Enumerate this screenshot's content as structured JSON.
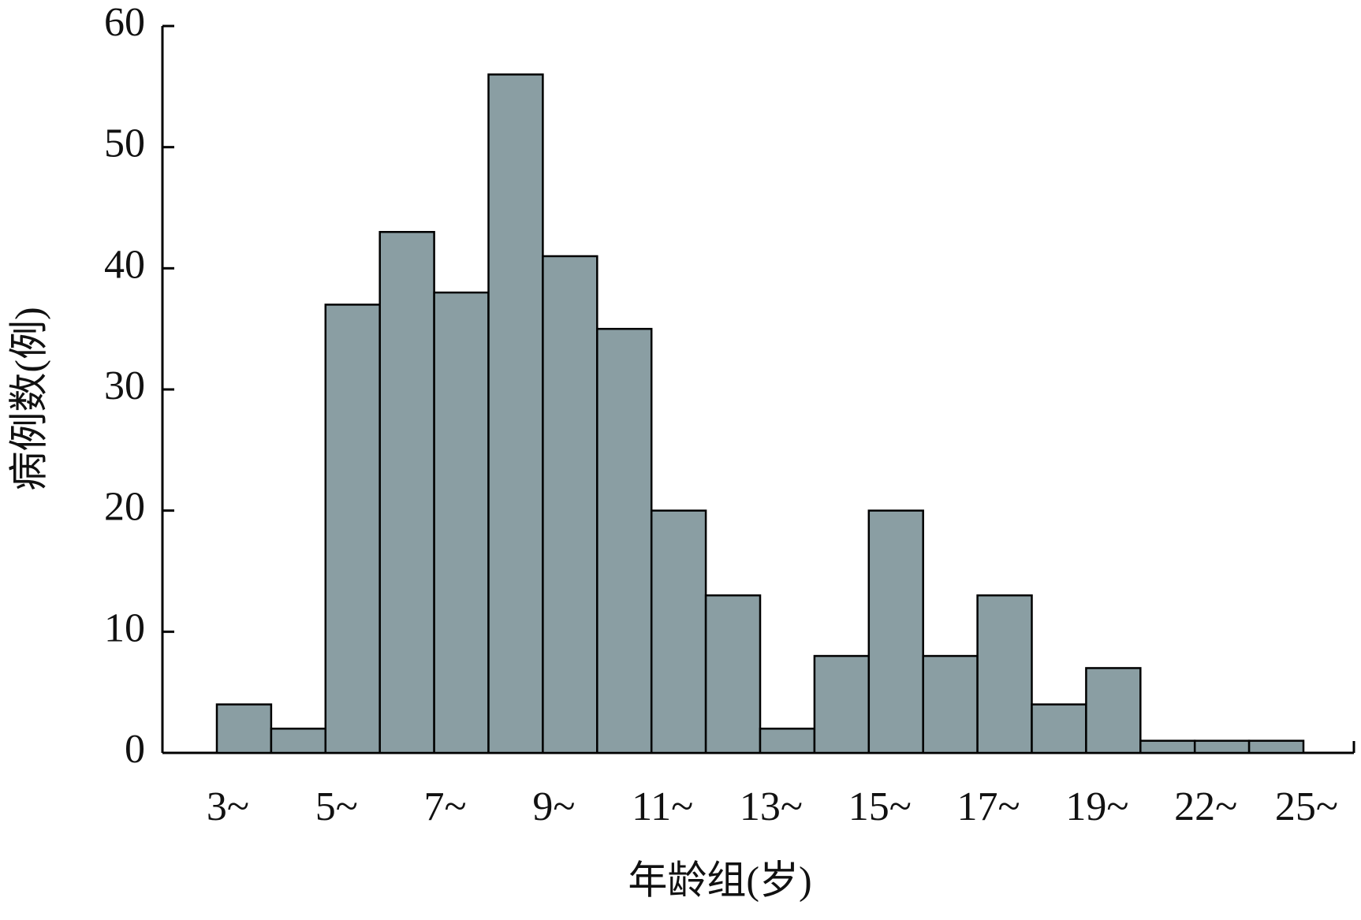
{
  "chart_data": {
    "type": "bar",
    "x_label": "年龄组(岁)",
    "y_label": "病例数(例)",
    "categories": [
      "3~",
      null,
      "5~",
      null,
      "7~",
      null,
      "9~",
      null,
      "11~",
      null,
      "13~",
      null,
      "15~",
      null,
      "17~",
      null,
      "19~",
      null,
      "22~",
      null
    ],
    "x_end_label": "25~",
    "values": [
      4,
      2,
      37,
      43,
      38,
      56,
      41,
      35,
      20,
      13,
      2,
      8,
      20,
      8,
      13,
      4,
      7,
      1,
      1,
      1
    ],
    "color": "#8a9ea3",
    "ylim": [
      0,
      60
    ],
    "yticks": [
      0,
      10,
      20,
      30,
      40,
      50,
      60
    ],
    "grid": false
  }
}
